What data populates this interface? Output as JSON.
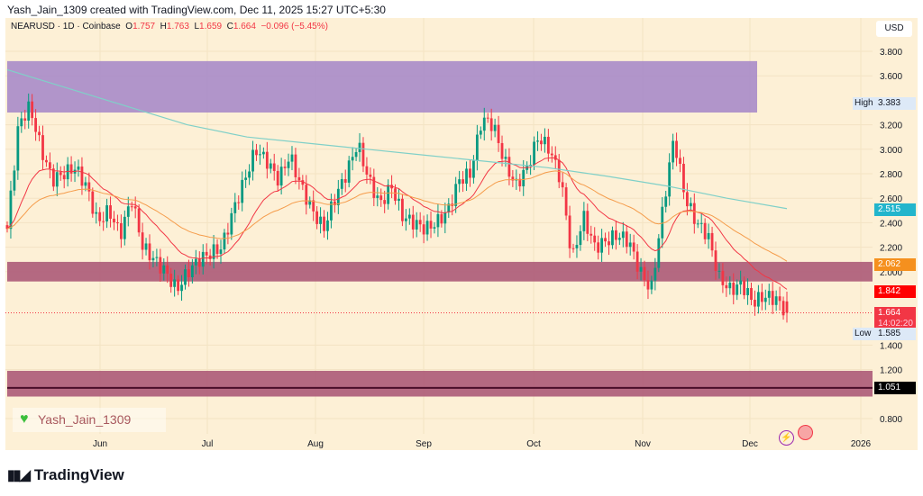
{
  "header": {
    "credit": "Yash_Jain_1309 created with TradingView.com, Dec 11, 2025 15:27 UTC+5:30"
  },
  "legend": {
    "symbol": "NEARUSD · 1D · Coinbase",
    "o_label": "O",
    "o": "1.757",
    "h_label": "H",
    "h": "1.763",
    "l_label": "L",
    "l": "1.659",
    "c_label": "C",
    "c": "1.664",
    "change": "−0.096 (−5.45%)"
  },
  "price_axis": {
    "currency": "USD",
    "ticks": [
      "3.800",
      "3.600",
      "3.200",
      "3.000",
      "2.800",
      "2.600",
      "2.400",
      "2.200",
      "2.000",
      "1.400",
      "1.200",
      "0.800"
    ]
  },
  "time_axis": {
    "ticks": [
      "Jun",
      "Jul",
      "Aug",
      "Sep",
      "Oct",
      "Nov",
      "Dec",
      "2026"
    ]
  },
  "tags": {
    "high_label": "High",
    "high": "3.383",
    "low_label": "Low",
    "low": "1.585",
    "ma200": "2.515",
    "ma50": "2.062",
    "ma20": "1.842",
    "last": "1.664",
    "countdown": "14:02:20",
    "support_line": "1.051"
  },
  "watermark": "Yash_Jain_1309",
  "brand": "TradingView",
  "colors": {
    "up": "#089981",
    "down": "#f23645",
    "zone_top": "#a98bc9",
    "zone_mid": "#b0617c",
    "ma20": "#f23645",
    "ma50": "#f59c4b",
    "ma200": "#80d0c8"
  },
  "chart_data": {
    "type": "candlestick",
    "price_range": [
      0.7,
      3.9
    ],
    "zones": [
      {
        "from": 3.3,
        "to": 3.72,
        "color": "#a98bc9",
        "end": "Nov 29"
      },
      {
        "from": 1.92,
        "to": 2.08,
        "color": "#b0617c"
      },
      {
        "from": 0.98,
        "to": 1.19,
        "color": "#b0617c",
        "line": 1.051
      }
    ],
    "closes_approx": [
      2.35,
      3.2,
      3.35,
      3.0,
      2.75,
      2.8,
      2.85,
      2.7,
      2.4,
      2.5,
      2.3,
      2.6,
      2.2,
      2.1,
      2.0,
      1.85,
      2.0,
      2.1,
      2.15,
      2.2,
      2.5,
      2.75,
      3.0,
      2.9,
      2.75,
      2.95,
      2.7,
      2.5,
      2.35,
      2.6,
      2.8,
      3.05,
      2.75,
      2.55,
      2.7,
      2.45,
      2.4,
      2.35,
      2.4,
      2.5,
      2.75,
      2.8,
      3.25,
      3.2,
      2.9,
      2.7,
      2.85,
      3.1,
      3.0,
      2.75,
      2.1,
      2.45,
      2.2,
      2.25,
      2.3,
      2.25,
      2.0,
      1.85,
      2.5,
      3.1,
      2.6,
      2.4,
      2.3,
      1.95,
      1.85,
      1.9,
      1.75,
      1.8,
      1.78,
      1.664
    ],
    "ma200_approx": [
      3.65,
      3.5,
      3.35,
      3.2,
      3.1,
      3.05,
      3.0,
      2.95,
      2.9,
      2.85,
      2.78,
      2.7,
      2.6,
      2.515
    ]
  }
}
